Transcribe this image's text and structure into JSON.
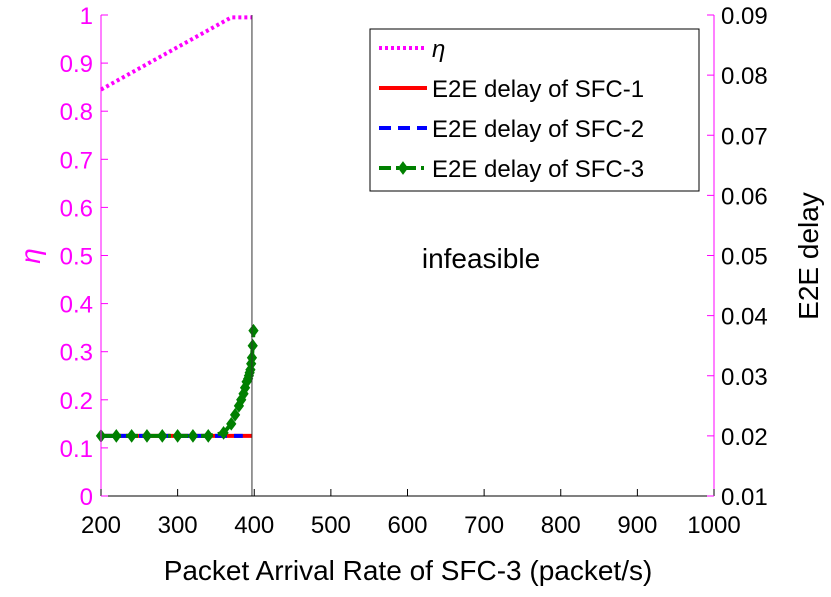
{
  "chart_data": {
    "type": "line",
    "xlabel": "Packet Arrival Rate of SFC-3 (packet/s)",
    "ylabel_left": "η",
    "ylabel_right": "E2E delay",
    "xlim": [
      200,
      1000
    ],
    "ylim_left": [
      0,
      1
    ],
    "ylim_right": [
      0.01,
      0.09
    ],
    "x_ticks": [
      200,
      300,
      400,
      500,
      600,
      700,
      800,
      900,
      1000
    ],
    "x_tick_labels": [
      "200",
      "300",
      "400",
      "500",
      "600",
      "700",
      "800",
      "900",
      "1000"
    ],
    "y_left_ticks": [
      0,
      0.1,
      0.2,
      0.3,
      0.4,
      0.5,
      0.6,
      0.7,
      0.8,
      0.9,
      1
    ],
    "y_left_tick_labels": [
      "0",
      "0.1",
      "0.2",
      "0.3",
      "0.4",
      "0.5",
      "0.6",
      "0.7",
      "0.8",
      "0.9",
      "1"
    ],
    "y_right_ticks": [
      0.01,
      0.02,
      0.03,
      0.04,
      0.05,
      0.06,
      0.07,
      0.08,
      0.09
    ],
    "y_right_tick_labels": [
      "0.01",
      "0.02",
      "0.03",
      "0.04",
      "0.05",
      "0.06",
      "0.07",
      "0.08",
      "0.09"
    ],
    "feasibility_boundary_x": 397,
    "annotation": "infeasible",
    "legend_position": "top-right",
    "series": [
      {
        "name": "η",
        "axis": "left",
        "color": "#ff00ff",
        "style": "dotted",
        "marker": "none",
        "x": [
          200,
          370,
          397
        ],
        "y": [
          0.845,
          0.995,
          0.995
        ]
      },
      {
        "name": "E2E delay of SFC-1",
        "axis": "right",
        "color": "#ff0000",
        "style": "solid",
        "marker": "none",
        "x": [
          200,
          397
        ],
        "y": [
          0.02,
          0.02
        ]
      },
      {
        "name": "E2E delay of SFC-2",
        "axis": "right",
        "color": "#0000ff",
        "style": "dashed",
        "marker": "none",
        "x": [
          200,
          385
        ],
        "y": [
          0.02,
          0.02
        ]
      },
      {
        "name": "E2E delay of SFC-3",
        "axis": "right",
        "color": "#008000",
        "style": "dashdot",
        "marker": "diamond",
        "x": [
          200,
          220,
          240,
          260,
          280,
          300,
          320,
          340,
          360,
          370,
          375,
          380,
          383,
          386,
          388,
          390,
          392,
          393,
          394,
          395,
          396,
          397,
          398,
          399
        ],
        "y": [
          0.02,
          0.02,
          0.02,
          0.02,
          0.02,
          0.02,
          0.02,
          0.02,
          0.0205,
          0.022,
          0.0235,
          0.025,
          0.026,
          0.027,
          0.028,
          0.029,
          0.0295,
          0.03,
          0.0305,
          0.031,
          0.032,
          0.033,
          0.035,
          0.0375
        ]
      }
    ]
  }
}
